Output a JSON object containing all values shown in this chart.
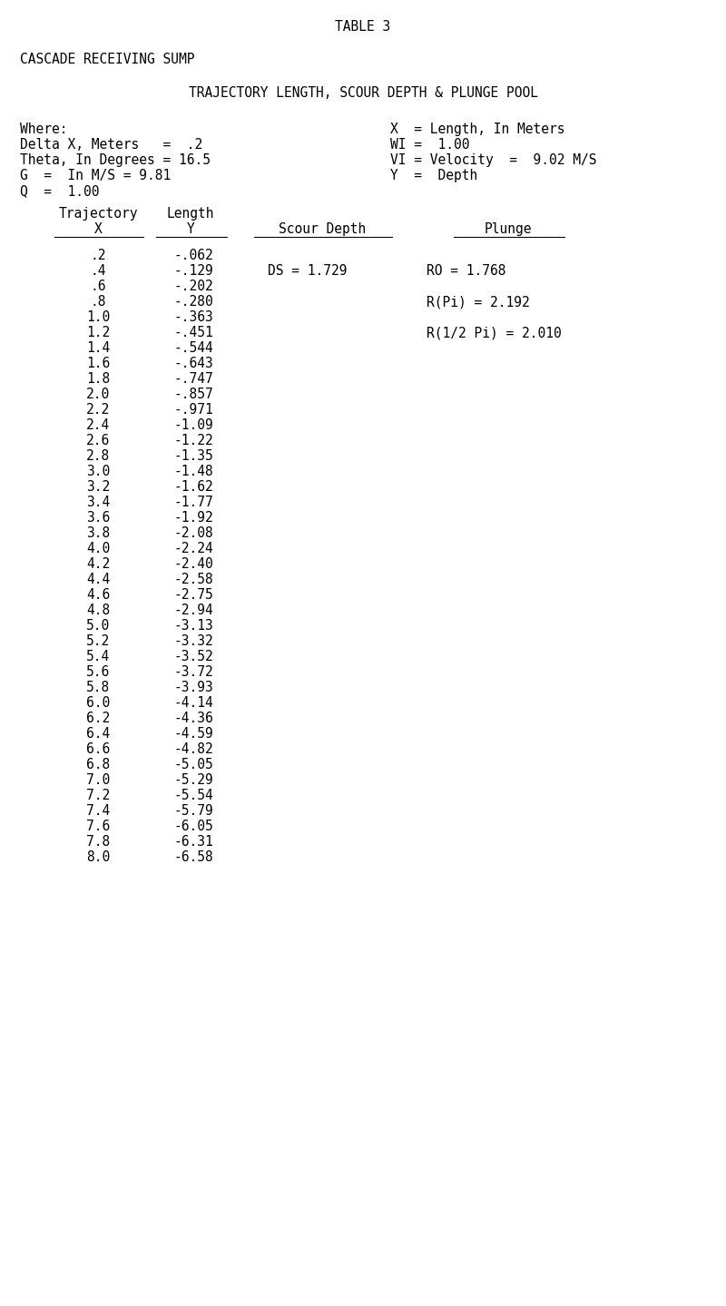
{
  "title": "TABLE 3",
  "subtitle1": "CASCADE RECEIVING SUMP",
  "subtitle2": "TRAJECTORY LENGTH, SCOUR DEPTH & PLUNGE POOL",
  "where_lines": [
    "Where:",
    "Delta X, Meters   =  .2",
    "Theta, In Degrees = 16.5",
    "G  =  In M/S = 9.81",
    "Q  =  1.00"
  ],
  "right_lines": [
    "X  = Length, In Meters",
    "WI =  1.00",
    "VI = Velocity  =  9.02 M/S",
    "Y  =  Depth"
  ],
  "trajectory_x": [
    ".2",
    ".4",
    ".6",
    ".8",
    "1.0",
    "1.2",
    "1.4",
    "1.6",
    "1.8",
    "2.0",
    "2.2",
    "2.4",
    "2.6",
    "2.8",
    "3.0",
    "3.2",
    "3.4",
    "3.6",
    "3.8",
    "4.0",
    "4.2",
    "4.4",
    "4.6",
    "4.8",
    "5.0",
    "5.2",
    "5.4",
    "5.6",
    "5.8",
    "6.0",
    "6.2",
    "6.4",
    "6.6",
    "6.8",
    "7.0",
    "7.2",
    "7.4",
    "7.6",
    "7.8",
    "8.0"
  ],
  "length_y": [
    "-.062",
    "-.129",
    "-.202",
    "-.280",
    "-.363",
    "-.451",
    "-.544",
    "-.643",
    "-.747",
    "-.857",
    "-.971",
    "-1.09",
    "-1.22",
    "-1.35",
    "-1.48",
    "-1.62",
    "-1.77",
    "-1.92",
    "-2.08",
    "-2.24",
    "-2.40",
    "-2.58",
    "-2.75",
    "-2.94",
    "-3.13",
    "-3.32",
    "-3.52",
    "-3.72",
    "-3.93",
    "-4.14",
    "-4.36",
    "-4.59",
    "-4.82",
    "-5.05",
    "-5.29",
    "-5.54",
    "-5.79",
    "-6.05",
    "-6.31",
    "-6.58"
  ],
  "scour_depth_text": "DS = 1.729",
  "plunge_text1": "RO = 1.768",
  "plunge_text2": "R(Pi) = 2.192",
  "plunge_text3": "R(1/2 Pi) = 2.010",
  "bg_color": "#ffffff",
  "text_color": "#000000",
  "font_size": 10.5
}
